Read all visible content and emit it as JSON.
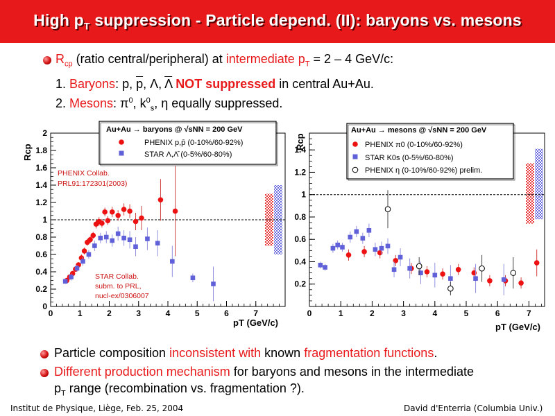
{
  "title": {
    "part1": "High p",
    "part1_sub": "T",
    "part2": " suppression - Particle depend. (II): baryons vs. mesons"
  },
  "bullets_top": {
    "b1_r": "R",
    "b1_r_sub": "cp",
    "b1_text1": " (ratio central/peripheral) at ",
    "b1_red": "intermediate p",
    "b1_red_sub": "T",
    "b1_text2": " = 2 – 4 GeV/c:",
    "line2_num": "1. ",
    "line2_red": "Baryons",
    "line2_particles_a": ":  p, ",
    "line2_pbar": "p",
    "line2_particles_b": ", Λ, ",
    "line2_lbar": "Λ",
    "line2_not": "NOT suppressed",
    "line2_rest": " in central Au+Au.",
    "line3_num": "2. ",
    "line3_red": "Mesons",
    "line3_a": ":  π",
    "line3_sup0": "0",
    "line3_b": ", k",
    "line3_sup1": "0",
    "line3_sub_s": "s",
    "line3_c": ", η   equally suppressed."
  },
  "bullets_bottom": {
    "b1_a": "Particle composition ",
    "b1_red1": "inconsistent with",
    "b1_b": " known ",
    "b1_red2": "fragmentation functions",
    "b1_c": ".",
    "b2_red": "Different production mechanism",
    "b2_a": " for baryons and mesons in the intermediate",
    "b2_b": "p",
    "b2_b_sub": "T",
    "b2_c": " range (recombination vs. fragmentation ?)."
  },
  "footer": {
    "left": "Institut de Physique, Liège, Feb. 25, 2004",
    "right": "David d'Enterria (Columbia Univ.)"
  },
  "colors": {
    "title_bg": "#e8191b",
    "accent_red": "#e8191b",
    "phenix_marker": "#ee1111",
    "star_marker": "#6060d8",
    "band_red": "#e83a3a",
    "band_blue": "#6a6ae0"
  },
  "chart_data": [
    {
      "type": "scatter",
      "title": "Au+Au → baryons @ √sNN = 200 GeV",
      "xlabel": "pT (GeV/c)",
      "ylabel": "Rcp",
      "xlim": [
        0,
        8
      ],
      "ylim": [
        0,
        2
      ],
      "xticks": [
        0,
        1,
        2,
        3,
        4,
        5,
        6,
        7
      ],
      "yticks": [
        0,
        0.2,
        0.4,
        0.6,
        0.8,
        1,
        1.2,
        1.4,
        1.6,
        1.8,
        2
      ],
      "ytick_labels": [
        "0",
        "0.2",
        "0.4",
        "0.6",
        "0.8",
        "1",
        "1.2",
        "1.4",
        "1.6",
        "1.8",
        "2"
      ],
      "reference_line": 1,
      "grid": false,
      "legend_title": "Au+Au → baryons @ √sNN = 200 GeV",
      "legend_placement": "top",
      "annotations": [
        {
          "text": "PHENIX Collab.",
          "color": "#cc1111"
        },
        {
          "text": "PRL91:172301(2003)",
          "color": "#cc1111"
        },
        {
          "text": "STAR Collab.",
          "color": "#cc1111"
        },
        {
          "text": "subm. to PRL,",
          "color": "#cc1111"
        },
        {
          "text": "nucl-ex/0306007",
          "color": "#cc1111"
        }
      ],
      "series": [
        {
          "name": "PHENIX p,p̄ (0-10%/60-92%)",
          "marker": "circle",
          "color": "#ee1111",
          "points": [
            [
              0.55,
              0.3,
              0.03
            ],
            [
              0.65,
              0.34,
              0.03
            ],
            [
              0.75,
              0.38,
              0.03
            ],
            [
              0.85,
              0.43,
              0.03
            ],
            [
              0.95,
              0.48,
              0.03
            ],
            [
              1.05,
              0.56,
              0.04
            ],
            [
              1.15,
              0.64,
              0.04
            ],
            [
              1.25,
              0.74,
              0.04
            ],
            [
              1.35,
              0.77,
              0.04
            ],
            [
              1.45,
              0.82,
              0.04
            ],
            [
              1.55,
              0.95,
              0.05
            ],
            [
              1.65,
              0.98,
              0.05
            ],
            [
              1.75,
              0.96,
              0.05
            ],
            [
              1.85,
              1.09,
              0.05
            ],
            [
              1.95,
              0.99,
              0.05
            ],
            [
              2.1,
              1.09,
              0.06
            ],
            [
              2.3,
              1.05,
              0.06
            ],
            [
              2.5,
              1.12,
              0.07
            ],
            [
              2.7,
              1.1,
              0.08
            ],
            [
              2.9,
              0.98,
              0.1
            ],
            [
              3.1,
              1.02,
              0.14
            ],
            [
              3.75,
              1.23,
              0.24
            ],
            [
              4.25,
              1.1,
              0.52
            ]
          ]
        },
        {
          "name": "STAR Λ,Λ̄ (0-5%/60-80%)",
          "marker": "square",
          "color": "#6060d8",
          "points": [
            [
              0.5,
              0.29,
              0.03
            ],
            [
              0.7,
              0.34,
              0.04
            ],
            [
              0.9,
              0.44,
              0.04
            ],
            [
              1.1,
              0.52,
              0.05
            ],
            [
              1.3,
              0.6,
              0.05
            ],
            [
              1.5,
              0.7,
              0.06
            ],
            [
              1.7,
              0.79,
              0.06
            ],
            [
              1.9,
              0.8,
              0.07
            ],
            [
              2.1,
              0.76,
              0.07
            ],
            [
              2.3,
              0.84,
              0.08
            ],
            [
              2.5,
              0.79,
              0.09
            ],
            [
              2.7,
              0.77,
              0.1
            ],
            [
              2.9,
              0.69,
              0.11
            ],
            [
              3.3,
              0.78,
              0.13
            ],
            [
              3.65,
              0.73,
              0.15
            ],
            [
              4.15,
              0.52,
              0.18
            ],
            [
              4.85,
              0.33,
              0.05
            ],
            [
              5.55,
              0.26,
              0.2
            ]
          ]
        }
      ],
      "bands": [
        {
          "color": "#e83a3a",
          "y_range": [
            0.7,
            1.3
          ]
        },
        {
          "color": "#6a6ae0",
          "y_range": [
            0.6,
            1.4
          ]
        }
      ]
    },
    {
      "type": "scatter",
      "title": "Au+Au → mesons @ √sNN = 200 GeV",
      "xlabel": "pT (GeV/c)",
      "ylabel": "Rcp",
      "xlim": [
        0,
        7.5
      ],
      "ylim": [
        0,
        1.55
      ],
      "xticks": [
        0,
        1,
        2,
        3,
        4,
        5,
        6,
        7
      ],
      "yticks": [
        0.2,
        0.4,
        0.6,
        0.8,
        1,
        1.2,
        1.4
      ],
      "ytick_labels": [
        "0.2",
        "0.4",
        "0.6",
        "0.8",
        "1",
        "1.2",
        "1.4"
      ],
      "reference_line": 1,
      "grid": false,
      "legend_title": "Au+Au → mesons @ √sNN = 200 GeV",
      "legend_placement": "top",
      "series": [
        {
          "name": "PHENIX π0 (0-10%/60-92%)",
          "marker": "circle",
          "color": "#ee1111",
          "points": [
            [
              1.25,
              0.46,
              0.05
            ],
            [
              1.75,
              0.49,
              0.05
            ],
            [
              2.25,
              0.48,
              0.05
            ],
            [
              2.75,
              0.41,
              0.05
            ],
            [
              3.25,
              0.34,
              0.05
            ],
            [
              3.75,
              0.31,
              0.05
            ],
            [
              4.25,
              0.29,
              0.05
            ],
            [
              4.75,
              0.33,
              0.05
            ],
            [
              5.25,
              0.3,
              0.05
            ],
            [
              5.75,
              0.23,
              0.05
            ],
            [
              6.25,
              0.23,
              0.05
            ],
            [
              6.75,
              0.21,
              0.05
            ],
            [
              7.25,
              0.39,
              0.12
            ]
          ]
        },
        {
          "name": "STAR K0s (0-5%/60-80%)",
          "marker": "square",
          "color": "#6060d8",
          "points": [
            [
              0.35,
              0.37,
              0.03
            ],
            [
              0.5,
              0.35,
              0.03
            ],
            [
              0.75,
              0.52,
              0.04
            ],
            [
              0.9,
              0.55,
              0.04
            ],
            [
              1.05,
              0.53,
              0.04
            ],
            [
              1.3,
              0.62,
              0.05
            ],
            [
              1.5,
              0.67,
              0.05
            ],
            [
              1.7,
              0.61,
              0.05
            ],
            [
              1.9,
              0.68,
              0.06
            ],
            [
              2.1,
              0.51,
              0.06
            ],
            [
              2.3,
              0.52,
              0.06
            ],
            [
              2.5,
              0.54,
              0.07
            ],
            [
              2.7,
              0.33,
              0.07
            ],
            [
              2.9,
              0.44,
              0.08
            ],
            [
              3.2,
              0.34,
              0.09
            ],
            [
              3.55,
              0.3,
              0.1
            ],
            [
              4.0,
              0.28,
              0.11
            ],
            [
              4.5,
              0.25,
              0.12
            ],
            [
              5.3,
              0.25,
              0.13
            ],
            [
              6.2,
              0.24,
              0.14
            ]
          ]
        },
        {
          "name": "PHENIX η (0-10%/60-92%) prelim.",
          "marker": "open-circle",
          "color": "#000000",
          "points": [
            [
              2.5,
              0.87,
              0.17
            ],
            [
              3.5,
              0.36,
              0.08
            ],
            [
              4.5,
              0.16,
              0.06
            ],
            [
              5.5,
              0.34,
              0.12
            ],
            [
              6.5,
              0.3,
              0.14
            ]
          ]
        }
      ],
      "bands": [
        {
          "color": "#e83a3a",
          "y_range": [
            0.74,
            1.28
          ]
        },
        {
          "color": "#6a6ae0",
          "y_range": [
            0.78,
            1.41
          ]
        }
      ]
    }
  ]
}
